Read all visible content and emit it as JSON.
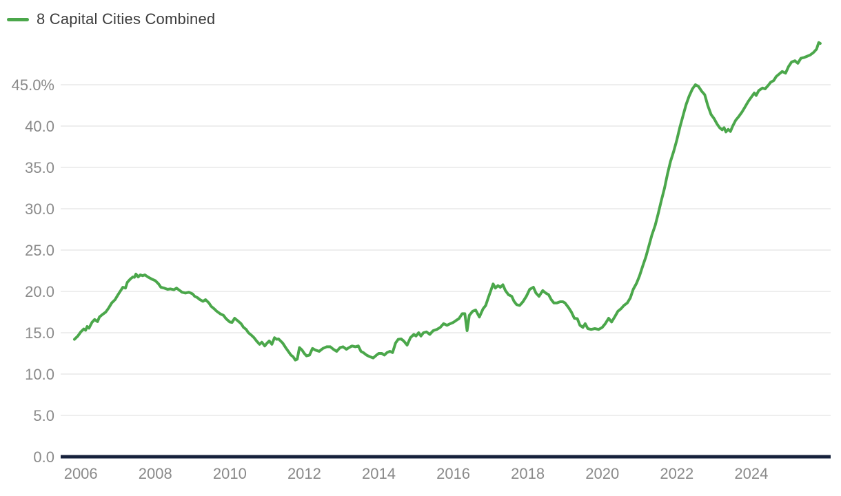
{
  "chart_data": {
    "type": "line",
    "title": "",
    "legend": {
      "position": "top-left"
    },
    "grid": "horizontal-only",
    "xlim": [
      2005.46,
      2026.13
    ],
    "ylim": [
      0,
      50
    ],
    "colors": {
      "line": "#4BA74B",
      "grid": "#e9e9e9",
      "baseline": "#16213c",
      "axis_text": "#8a8a8a",
      "legend_text": "#3d3d3d",
      "background": "#ffffff"
    },
    "x_axis": {
      "ticks": [
        {
          "value": 2006,
          "label": "2006"
        },
        {
          "value": 2008,
          "label": "2008"
        },
        {
          "value": 2010,
          "label": "2010"
        },
        {
          "value": 2012,
          "label": "2012"
        },
        {
          "value": 2014,
          "label": "2014"
        },
        {
          "value": 2016,
          "label": "2016"
        },
        {
          "value": 2018,
          "label": "2018"
        },
        {
          "value": 2020,
          "label": "2020"
        },
        {
          "value": 2022,
          "label": "2022"
        },
        {
          "value": 2024,
          "label": "2024"
        }
      ]
    },
    "y_axis": {
      "ticks": [
        {
          "value": 0,
          "label": "0.0"
        },
        {
          "value": 5,
          "label": "5.0"
        },
        {
          "value": 10,
          "label": "10.0"
        },
        {
          "value": 15,
          "label": "15.0"
        },
        {
          "value": 20,
          "label": "20.0"
        },
        {
          "value": 25,
          "label": "25.0"
        },
        {
          "value": 30,
          "label": "30.0"
        },
        {
          "value": 35,
          "label": "35.0"
        },
        {
          "value": 40,
          "label": "40.0"
        },
        {
          "value": 45,
          "label": "45.0%"
        }
      ]
    },
    "series": [
      {
        "name": "8 Capital Cities Combined",
        "color": "#4BA74B",
        "points": [
          [
            2005.83,
            14.2
          ],
          [
            2005.92,
            14.6
          ],
          [
            2006.0,
            15.1
          ],
          [
            2006.08,
            15.45
          ],
          [
            2006.13,
            15.3
          ],
          [
            2006.17,
            15.75
          ],
          [
            2006.22,
            15.55
          ],
          [
            2006.3,
            16.25
          ],
          [
            2006.37,
            16.6
          ],
          [
            2006.45,
            16.35
          ],
          [
            2006.5,
            16.9
          ],
          [
            2006.58,
            17.2
          ],
          [
            2006.67,
            17.5
          ],
          [
            2006.75,
            18.0
          ],
          [
            2006.83,
            18.6
          ],
          [
            2006.92,
            19.0
          ],
          [
            2007.0,
            19.6
          ],
          [
            2007.08,
            20.15
          ],
          [
            2007.13,
            20.5
          ],
          [
            2007.2,
            20.4
          ],
          [
            2007.25,
            21.1
          ],
          [
            2007.33,
            21.5
          ],
          [
            2007.4,
            21.75
          ],
          [
            2007.44,
            21.7
          ],
          [
            2007.48,
            22.1
          ],
          [
            2007.54,
            21.75
          ],
          [
            2007.6,
            22.0
          ],
          [
            2007.66,
            21.9
          ],
          [
            2007.72,
            22.0
          ],
          [
            2007.8,
            21.75
          ],
          [
            2007.9,
            21.5
          ],
          [
            2008.0,
            21.3
          ],
          [
            2008.09,
            20.9
          ],
          [
            2008.15,
            20.5
          ],
          [
            2008.24,
            20.4
          ],
          [
            2008.33,
            20.25
          ],
          [
            2008.41,
            20.3
          ],
          [
            2008.5,
            20.2
          ],
          [
            2008.57,
            20.4
          ],
          [
            2008.66,
            20.1
          ],
          [
            2008.72,
            19.9
          ],
          [
            2008.81,
            19.8
          ],
          [
            2008.9,
            19.9
          ],
          [
            2009.0,
            19.7
          ],
          [
            2009.06,
            19.4
          ],
          [
            2009.13,
            19.25
          ],
          [
            2009.2,
            19.0
          ],
          [
            2009.28,
            18.8
          ],
          [
            2009.35,
            19.0
          ],
          [
            2009.44,
            18.6
          ],
          [
            2009.5,
            18.2
          ],
          [
            2009.58,
            17.9
          ],
          [
            2009.65,
            17.6
          ],
          [
            2009.74,
            17.3
          ],
          [
            2009.83,
            17.1
          ],
          [
            2009.9,
            16.7
          ],
          [
            2010.0,
            16.3
          ],
          [
            2010.06,
            16.25
          ],
          [
            2010.13,
            16.75
          ],
          [
            2010.2,
            16.5
          ],
          [
            2010.3,
            16.1
          ],
          [
            2010.37,
            15.65
          ],
          [
            2010.44,
            15.4
          ],
          [
            2010.5,
            15.0
          ],
          [
            2010.58,
            14.7
          ],
          [
            2010.65,
            14.4
          ],
          [
            2010.72,
            14.0
          ],
          [
            2010.8,
            13.6
          ],
          [
            2010.86,
            13.85
          ],
          [
            2010.94,
            13.4
          ],
          [
            2011.0,
            13.75
          ],
          [
            2011.06,
            14.0
          ],
          [
            2011.13,
            13.6
          ],
          [
            2011.2,
            14.4
          ],
          [
            2011.26,
            14.2
          ],
          [
            2011.31,
            14.25
          ],
          [
            2011.42,
            13.75
          ],
          [
            2011.5,
            13.2
          ],
          [
            2011.57,
            12.75
          ],
          [
            2011.64,
            12.3
          ],
          [
            2011.7,
            12.1
          ],
          [
            2011.76,
            11.7
          ],
          [
            2011.81,
            11.8
          ],
          [
            2011.87,
            13.2
          ],
          [
            2011.94,
            12.9
          ],
          [
            2012.0,
            12.5
          ],
          [
            2012.06,
            12.2
          ],
          [
            2012.14,
            12.3
          ],
          [
            2012.22,
            13.1
          ],
          [
            2012.3,
            12.9
          ],
          [
            2012.4,
            12.75
          ],
          [
            2012.5,
            13.1
          ],
          [
            2012.6,
            13.3
          ],
          [
            2012.7,
            13.3
          ],
          [
            2012.78,
            13.0
          ],
          [
            2012.87,
            12.75
          ],
          [
            2012.96,
            13.2
          ],
          [
            2013.04,
            13.3
          ],
          [
            2013.13,
            13.0
          ],
          [
            2013.2,
            13.2
          ],
          [
            2013.28,
            13.4
          ],
          [
            2013.37,
            13.3
          ],
          [
            2013.45,
            13.4
          ],
          [
            2013.52,
            12.75
          ],
          [
            2013.6,
            12.55
          ],
          [
            2013.67,
            12.3
          ],
          [
            2013.76,
            12.1
          ],
          [
            2013.85,
            11.95
          ],
          [
            2013.94,
            12.3
          ],
          [
            2014.0,
            12.5
          ],
          [
            2014.08,
            12.5
          ],
          [
            2014.15,
            12.3
          ],
          [
            2014.22,
            12.6
          ],
          [
            2014.3,
            12.75
          ],
          [
            2014.37,
            12.6
          ],
          [
            2014.45,
            13.75
          ],
          [
            2014.52,
            14.2
          ],
          [
            2014.6,
            14.25
          ],
          [
            2014.67,
            14.0
          ],
          [
            2014.76,
            13.5
          ],
          [
            2014.85,
            14.4
          ],
          [
            2014.94,
            14.8
          ],
          [
            2015.0,
            14.6
          ],
          [
            2015.07,
            15.0
          ],
          [
            2015.13,
            14.6
          ],
          [
            2015.2,
            15.0
          ],
          [
            2015.28,
            15.1
          ],
          [
            2015.37,
            14.8
          ],
          [
            2015.46,
            15.25
          ],
          [
            2015.56,
            15.4
          ],
          [
            2015.65,
            15.65
          ],
          [
            2015.74,
            16.1
          ],
          [
            2015.83,
            15.9
          ],
          [
            2015.92,
            16.1
          ],
          [
            2016.0,
            16.25
          ],
          [
            2016.08,
            16.5
          ],
          [
            2016.15,
            16.7
          ],
          [
            2016.24,
            17.3
          ],
          [
            2016.31,
            17.3
          ],
          [
            2016.37,
            15.25
          ],
          [
            2016.43,
            17.1
          ],
          [
            2016.52,
            17.6
          ],
          [
            2016.6,
            17.75
          ],
          [
            2016.7,
            16.9
          ],
          [
            2016.8,
            17.9
          ],
          [
            2016.87,
            18.3
          ],
          [
            2016.94,
            19.25
          ],
          [
            2017.0,
            20.0
          ],
          [
            2017.07,
            20.9
          ],
          [
            2017.13,
            20.4
          ],
          [
            2017.2,
            20.7
          ],
          [
            2017.26,
            20.5
          ],
          [
            2017.33,
            20.8
          ],
          [
            2017.4,
            20.1
          ],
          [
            2017.48,
            19.6
          ],
          [
            2017.57,
            19.4
          ],
          [
            2017.63,
            18.8
          ],
          [
            2017.7,
            18.4
          ],
          [
            2017.78,
            18.3
          ],
          [
            2017.87,
            18.75
          ],
          [
            2017.96,
            19.4
          ],
          [
            2018.05,
            20.25
          ],
          [
            2018.15,
            20.5
          ],
          [
            2018.22,
            19.8
          ],
          [
            2018.3,
            19.4
          ],
          [
            2018.4,
            20.1
          ],
          [
            2018.48,
            19.8
          ],
          [
            2018.56,
            19.6
          ],
          [
            2018.63,
            19.0
          ],
          [
            2018.7,
            18.6
          ],
          [
            2018.78,
            18.6
          ],
          [
            2018.87,
            18.75
          ],
          [
            2018.94,
            18.75
          ],
          [
            2019.0,
            18.6
          ],
          [
            2019.1,
            18.0
          ],
          [
            2019.17,
            17.5
          ],
          [
            2019.25,
            16.75
          ],
          [
            2019.33,
            16.7
          ],
          [
            2019.4,
            15.9
          ],
          [
            2019.48,
            15.65
          ],
          [
            2019.54,
            16.1
          ],
          [
            2019.61,
            15.5
          ],
          [
            2019.7,
            15.4
          ],
          [
            2019.8,
            15.5
          ],
          [
            2019.9,
            15.4
          ],
          [
            2020.0,
            15.65
          ],
          [
            2020.08,
            16.1
          ],
          [
            2020.17,
            16.75
          ],
          [
            2020.25,
            16.3
          ],
          [
            2020.33,
            16.9
          ],
          [
            2020.42,
            17.6
          ],
          [
            2020.5,
            17.9
          ],
          [
            2020.58,
            18.3
          ],
          [
            2020.67,
            18.6
          ],
          [
            2020.75,
            19.2
          ],
          [
            2020.83,
            20.25
          ],
          [
            2020.92,
            21.0
          ],
          [
            2021.0,
            21.9
          ],
          [
            2021.08,
            23.0
          ],
          [
            2021.17,
            24.2
          ],
          [
            2021.25,
            25.5
          ],
          [
            2021.33,
            26.8
          ],
          [
            2021.42,
            28.0
          ],
          [
            2021.5,
            29.4
          ],
          [
            2021.58,
            30.9
          ],
          [
            2021.67,
            32.5
          ],
          [
            2021.75,
            34.2
          ],
          [
            2021.83,
            35.7
          ],
          [
            2021.92,
            37.0
          ],
          [
            2022.0,
            38.3
          ],
          [
            2022.08,
            39.8
          ],
          [
            2022.17,
            41.3
          ],
          [
            2022.25,
            42.6
          ],
          [
            2022.33,
            43.6
          ],
          [
            2022.42,
            44.5
          ],
          [
            2022.5,
            45.0
          ],
          [
            2022.58,
            44.8
          ],
          [
            2022.67,
            44.2
          ],
          [
            2022.75,
            43.8
          ],
          [
            2022.83,
            42.5
          ],
          [
            2022.92,
            41.4
          ],
          [
            2023.0,
            40.9
          ],
          [
            2023.08,
            40.25
          ],
          [
            2023.15,
            39.8
          ],
          [
            2023.22,
            39.55
          ],
          [
            2023.27,
            39.8
          ],
          [
            2023.32,
            39.3
          ],
          [
            2023.38,
            39.6
          ],
          [
            2023.44,
            39.35
          ],
          [
            2023.5,
            40.0
          ],
          [
            2023.58,
            40.7
          ],
          [
            2023.67,
            41.2
          ],
          [
            2023.75,
            41.7
          ],
          [
            2023.83,
            42.3
          ],
          [
            2023.92,
            43.0
          ],
          [
            2024.0,
            43.5
          ],
          [
            2024.08,
            44.0
          ],
          [
            2024.13,
            43.7
          ],
          [
            2024.2,
            44.3
          ],
          [
            2024.3,
            44.6
          ],
          [
            2024.37,
            44.5
          ],
          [
            2024.45,
            44.9
          ],
          [
            2024.52,
            45.3
          ],
          [
            2024.6,
            45.5
          ],
          [
            2024.67,
            46.0
          ],
          [
            2024.75,
            46.3
          ],
          [
            2024.83,
            46.6
          ],
          [
            2024.92,
            46.4
          ],
          [
            2025.0,
            47.2
          ],
          [
            2025.08,
            47.75
          ],
          [
            2025.17,
            47.9
          ],
          [
            2025.25,
            47.6
          ],
          [
            2025.33,
            48.2
          ],
          [
            2025.42,
            48.3
          ],
          [
            2025.5,
            48.45
          ],
          [
            2025.58,
            48.6
          ],
          [
            2025.67,
            48.9
          ],
          [
            2025.75,
            49.3
          ],
          [
            2025.81,
            50.1
          ],
          [
            2025.85,
            50.0
          ]
        ]
      }
    ]
  }
}
